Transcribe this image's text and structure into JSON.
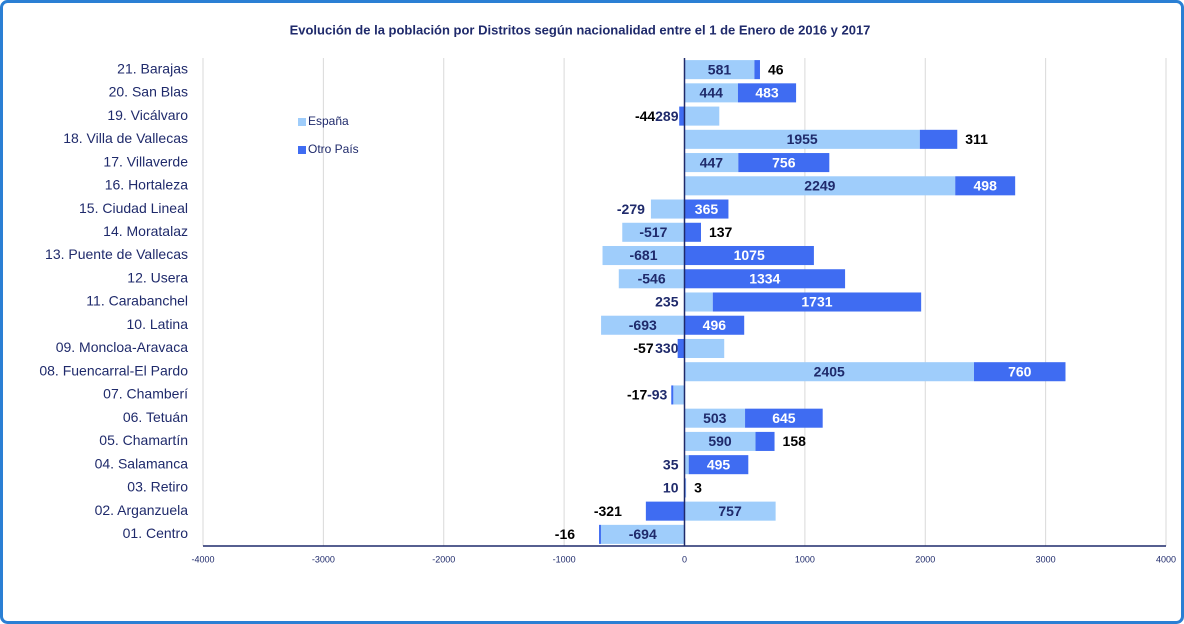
{
  "chart_data": {
    "type": "bar",
    "orientation": "horizontal",
    "stacked": true,
    "title": "Evolución de la población por Distritos según nacionalidad entre el 1 de Enero de 2016 y 2017",
    "categories": [
      "01. Centro",
      "02. Arganzuela",
      "03. Retiro",
      "04. Salamanca",
      "05. Chamartín",
      "06. Tetuán",
      "07. Chamberí",
      "08. Fuencarral-El Pardo",
      "09. Moncloa-Aravaca",
      "10. Latina",
      "11. Carabanchel",
      "12. Usera",
      "13.  Puente de Vallecas",
      "14. Moratalaz",
      "15. Ciudad Lineal",
      "16. Hortaleza",
      "17. Villaverde",
      "18. Villa de Vallecas",
      "19. Vicálvaro",
      "20. San Blas",
      "21. Barajas"
    ],
    "series": [
      {
        "name": "España",
        "color": "#9fcdfb",
        "values": [
          -694,
          757,
          10,
          35,
          590,
          503,
          -93,
          2405,
          330,
          -693,
          235,
          -546,
          -681,
          -517,
          -279,
          2249,
          447,
          1955,
          289,
          444,
          581
        ]
      },
      {
        "name": "Otro País",
        "color": "#3f6cf2",
        "values": [
          -16,
          -321,
          3,
          495,
          158,
          645,
          -17,
          760,
          -57,
          496,
          1731,
          1334,
          1075,
          137,
          365,
          498,
          756,
          311,
          -44,
          483,
          46
        ]
      }
    ],
    "xlim": [
      -4000,
      4000
    ],
    "xticks": [
      -4000,
      -3000,
      -2000,
      -1000,
      0,
      1000,
      2000,
      3000,
      4000
    ],
    "grid": true
  }
}
